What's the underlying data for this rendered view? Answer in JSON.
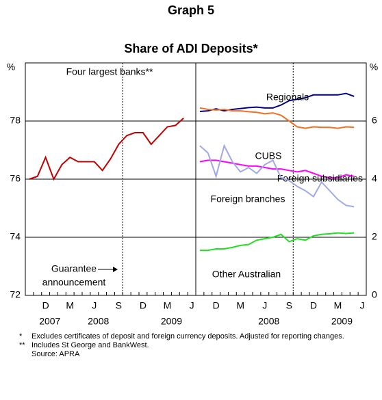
{
  "title": "Graph 5",
  "subtitle": "Share of ADI Deposits*",
  "chart_data": [
    {
      "type": "line",
      "y_unit": "%",
      "y_side": "left",
      "categories": [
        null,
        null,
        "D",
        null,
        null,
        "M",
        null,
        null,
        "J",
        null,
        null,
        "S",
        null,
        null,
        "D",
        null,
        null,
        "M",
        null,
        null,
        "J"
      ],
      "years": [
        "2007",
        "2008",
        "2009"
      ],
      "ylim": [
        72,
        80
      ],
      "yticks": [
        72,
        74,
        76,
        78
      ],
      "grid": true,
      "annotations": [
        "Four largest banks**"
      ],
      "event_label": [
        "Guarantee",
        "announcement"
      ],
      "series": [
        {
          "name": "Four largest banks",
          "color": "#c00000",
          "values": [
            76.0,
            76.1,
            76.75,
            76.0,
            76.5,
            76.75,
            76.6,
            76.6,
            76.6,
            76.3,
            76.7,
            77.2,
            77.5,
            77.6,
            77.6,
            77.2,
            77.5,
            77.8,
            77.85,
            78.1,
            null
          ]
        }
      ]
    },
    {
      "type": "line",
      "y_unit": "%",
      "y_side": "right",
      "categories": [
        null,
        null,
        "D",
        null,
        null,
        "M",
        null,
        null,
        "J",
        null,
        null,
        "S",
        null,
        null,
        "D",
        null,
        null,
        "M",
        null,
        null,
        "J"
      ],
      "years": [
        "2008",
        "2009"
      ],
      "ylim": [
        0,
        8
      ],
      "yticks": [
        0,
        2,
        4,
        6
      ],
      "grid": true,
      "series": [
        {
          "name": "Regionals",
          "color": "#000080",
          "values": [
            6.33,
            6.35,
            6.42,
            6.35,
            6.4,
            6.43,
            6.46,
            6.48,
            6.45,
            6.45,
            6.55,
            6.7,
            6.75,
            6.8,
            6.9,
            6.9,
            6.9,
            6.9,
            6.95,
            6.85,
            null
          ]
        },
        {
          "name": "CUBS",
          "color": "#f07020",
          "values": [
            6.45,
            6.4,
            6.38,
            6.4,
            6.35,
            6.35,
            6.32,
            6.3,
            6.25,
            6.28,
            6.2,
            6.0,
            5.8,
            5.75,
            5.8,
            5.78,
            5.78,
            5.75,
            5.8,
            5.78,
            null
          ]
        },
        {
          "name": "Foreign subsidiaries",
          "color": "#ff00ff",
          "values": [
            4.6,
            4.65,
            4.65,
            4.6,
            4.55,
            4.5,
            4.45,
            4.45,
            4.4,
            4.35,
            4.35,
            4.3,
            4.25,
            4.3,
            4.2,
            4.1,
            4.05,
            4.05,
            4.15,
            4.1,
            null
          ]
        },
        {
          "name": "Foreign branches",
          "color": "#a0a8e8",
          "values": [
            5.15,
            4.9,
            4.1,
            5.15,
            4.6,
            4.25,
            4.4,
            4.2,
            4.5,
            4.65,
            4.05,
            3.95,
            3.75,
            3.6,
            3.4,
            3.9,
            3.6,
            3.3,
            3.1,
            3.05,
            null
          ]
        },
        {
          "name": "Other Australian",
          "color": "#20e020",
          "values": [
            1.55,
            1.55,
            1.6,
            1.6,
            1.65,
            1.72,
            1.75,
            1.9,
            1.95,
            2.0,
            2.1,
            1.85,
            1.95,
            1.9,
            2.05,
            2.1,
            2.12,
            2.15,
            2.13,
            2.15,
            null
          ]
        }
      ]
    }
  ],
  "footnotes": [
    {
      "marker": "*",
      "text": "Excludes certificates of deposit and foreign currency deposits. Adjusted for reporting changes."
    },
    {
      "marker": "**",
      "text": "Includes St George and BankWest."
    },
    {
      "marker": "",
      "text": "Source: APRA"
    }
  ]
}
